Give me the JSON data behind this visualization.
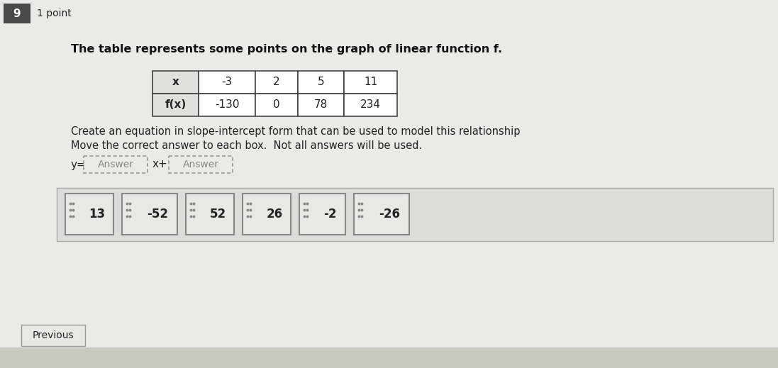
{
  "question_number": "9",
  "points": "1 point",
  "question_text_1": "The table represents some points on the graph of linear function f.",
  "question_text_2_line1": "Create an equation in slope-intercept form that can be used to model this relationship",
  "question_text_2_line2": "Move the correct answer to each box.  Not all answers will be used.",
  "table_headers": [
    "x",
    "-3",
    "2",
    "5",
    "11"
  ],
  "table_row2": [
    "f(x)",
    "-130",
    "0",
    "78",
    "234"
  ],
  "equation_prefix": "y=",
  "answer_box1_text": "Answer",
  "answer_box2_text": "Answer",
  "eq_middle": "x+",
  "answer_tiles": [
    "13",
    "-52",
    "52",
    "26",
    "-2",
    "-26"
  ],
  "prev_button": "Previous",
  "outer_bg": "#c8cac0",
  "panel_bg": "#eaeae8",
  "tile_bg": "#e8e8e6",
  "tile_border": "#888888",
  "tiles_area_bg": "#dcdcda",
  "tiles_area_border": "#aaaaaa",
  "table_border": "#444444",
  "table_cell_bg": "#ffffff",
  "table_header_bg": "#e0e0de",
  "answer_box_border": "#aaaaaa",
  "answer_box_bg": "#eaeae8",
  "number_badge_bg": "#484848",
  "number_badge_fg": "#ffffff",
  "text_color": "#222222",
  "bold_text_color": "#111111",
  "prev_btn_bg": "#e8e8e6",
  "prev_btn_border": "#999999"
}
